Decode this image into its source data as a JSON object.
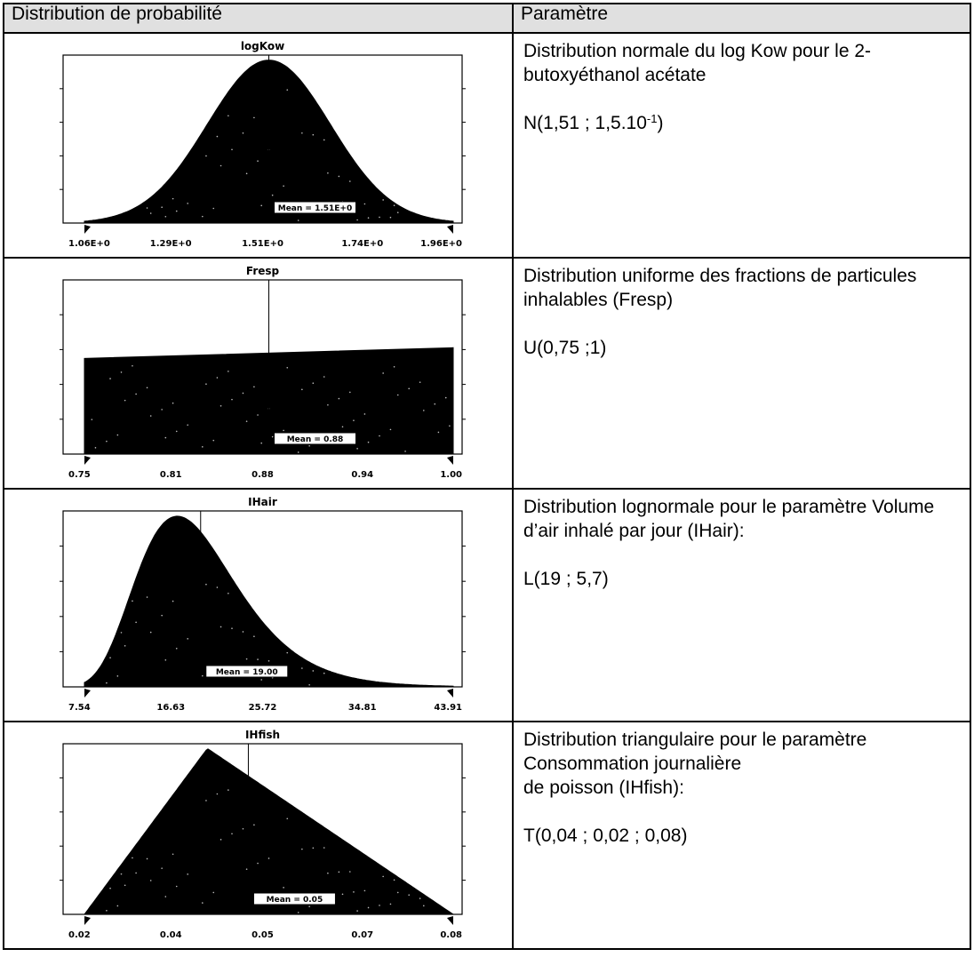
{
  "table": {
    "header_left": "Distribution de probabilité",
    "header_right": "Paramètre",
    "rows": [
      {
        "title": "Distribution normale du log Kow pour le 2-butoxyéthanol acétate",
        "formula_main": "N(1,51 ; 1,5.10",
        "formula_exp": "-1",
        "formula_tail": ")"
      },
      {
        "title": "Distribution uniforme des fractions de particules inhalables (Fresp)",
        "formula_main": "U(0,75 ;1)"
      },
      {
        "title": "Distribution lognormale pour le paramètre Volume d’air inhalé par jour (IHair):",
        "formula_main": "L(19 ; 5,7)"
      },
      {
        "title_lines": [
          "Distribution triangulaire pour le paramètre",
          "Consommation journalière",
          "de poisson  (IHfish):"
        ],
        "formula_main": "T(0,04 ; 0,02 ; 0,08)"
      }
    ]
  },
  "chart_data": [
    {
      "type": "area",
      "distribution": "normal",
      "title": "logKow",
      "x_tick_labels": [
        "1.06E+0",
        "1.29E+0",
        "1.51E+0",
        "1.74E+0",
        "1.96E+0"
      ],
      "xlim": [
        1.06,
        1.96
      ],
      "params": {
        "mean": 1.51,
        "sd": 0.15
      },
      "mean_label": "Mean = 1.51E+0",
      "fill_color": "#000000"
    },
    {
      "type": "area",
      "distribution": "uniform",
      "title": "Fresp",
      "x_tick_labels": [
        "0.75",
        "0.81",
        "0.88",
        "0.94",
        "1.00"
      ],
      "xlim": [
        0.75,
        1.0
      ],
      "params": {
        "min": 0.75,
        "max": 1.0
      },
      "mean_label": "Mean = 0.88",
      "fill_color": "#000000"
    },
    {
      "type": "area",
      "distribution": "lognormal",
      "title": "IHair",
      "x_tick_labels": [
        "7.54",
        "16.63",
        "25.72",
        "34.81",
        "43.91"
      ],
      "xlim": [
        7.54,
        43.91
      ],
      "params": {
        "mean": 19,
        "sd": 5.7
      },
      "mean_label": "Mean = 19.00",
      "fill_color": "#000000"
    },
    {
      "type": "area",
      "distribution": "triangular",
      "title": "IHfish",
      "x_tick_labels": [
        "0.02",
        "0.04",
        "0.05",
        "0.07",
        "0.08"
      ],
      "xlim": [
        0.02,
        0.08
      ],
      "params": {
        "mode": 0.04,
        "min": 0.02,
        "max": 0.08
      },
      "mean_label": "Mean = 0.05",
      "fill_color": "#000000"
    }
  ]
}
